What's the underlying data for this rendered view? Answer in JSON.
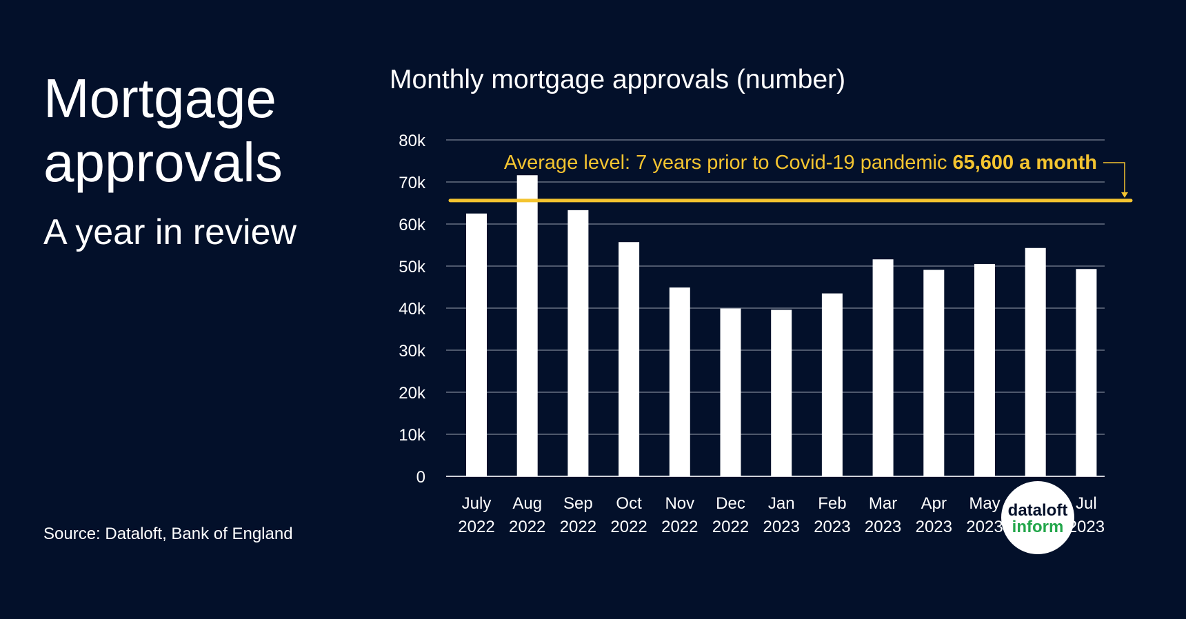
{
  "header": {
    "title": "Mortgage approvals",
    "subtitle": "A year in review"
  },
  "source": "Source: Dataloft, Bank of England",
  "logo": {
    "line1": "dataloft",
    "line2": "inform"
  },
  "chart_data": {
    "type": "bar",
    "title": "Monthly mortgage approvals (number)",
    "categories": [
      "July 2022",
      "Aug 2022",
      "Sep 2022",
      "Oct 2022",
      "Nov 2022",
      "Dec 2022",
      "Jan 2023",
      "Feb 2023",
      "Mar 2023",
      "Apr 2023",
      "May 2023",
      null,
      "Jul 2023"
    ],
    "values": [
      62500,
      71600,
      63300,
      55700,
      44900,
      39900,
      39600,
      43500,
      51600,
      49100,
      50500,
      54300,
      49300
    ],
    "color": "#ffffff",
    "ylim": [
      0,
      80000
    ],
    "yticks": [
      0,
      {
        "value": 10000,
        "label": "10k"
      },
      {
        "value": 20000,
        "label": "20k"
      },
      {
        "value": 30000,
        "label": "30k"
      },
      {
        "value": 40000,
        "label": "40k"
      },
      {
        "value": 50000,
        "label": "50k"
      },
      {
        "value": 60000,
        "label": "60k"
      },
      {
        "value": 70000,
        "label": "70k"
      },
      {
        "value": 80000,
        "label": "80k"
      }
    ],
    "grid": true,
    "reference_line": {
      "value": 65600,
      "text": "Average level: 7 years prior to Covid-19 pandemic",
      "label": "65,600 a month",
      "color": "#f4c430"
    }
  }
}
